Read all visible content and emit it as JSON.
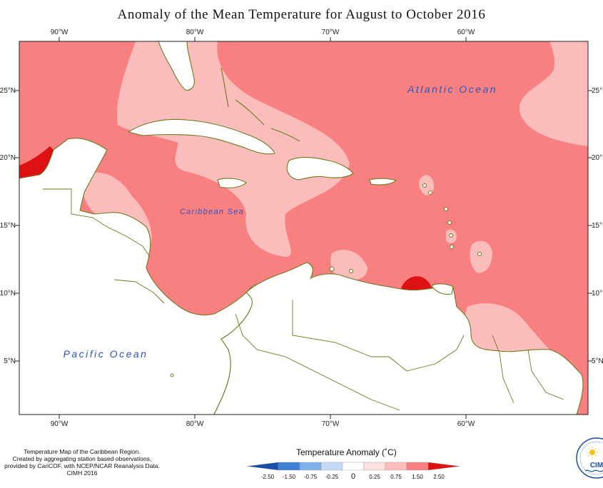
{
  "title": "Anomaly of the Mean Temperature for August to October 2016",
  "map": {
    "longitude_ticks_top": [
      "90°W",
      "80°W",
      "70°W",
      "60°W"
    ],
    "longitude_ticks_bottom": [
      "90°W",
      "80°W",
      "70°W",
      "60°W"
    ],
    "latitude_ticks_left": [
      "25°N",
      "20°N",
      "15°N",
      "10°N",
      "5°N"
    ],
    "latitude_ticks_right": [
      "25°N",
      "20°N",
      "15°N",
      "10°N",
      "5°N"
    ],
    "labels": {
      "atlantic": "Atlantic Ocean",
      "caribbean": "Caribbean Sea",
      "pacific": "Pacific Ocean"
    },
    "colors": {
      "anomaly_0_75_to_1_50": "#f98080",
      "anomaly_0_25_to_0_75": "#fbbcbc",
      "anomaly_1_50_to_2_50": "#dd1111",
      "land": "#ffffff",
      "coastline": "#6b7a1e"
    }
  },
  "credits": [
    "Temperature Map of the Caribbean Region.",
    "Created by aggregating station based observations,",
    "provided by CariCOF, with NCEP/NCAR Reanalysis Data.",
    "CIMH 2016"
  ],
  "legend": {
    "title": "Temperature Anomaly (˚C)",
    "tick_labels": [
      "-2.50",
      "-1.50",
      "-0.75",
      "-0.25",
      "0",
      "0.25",
      "0.75",
      "1.50",
      "2.50"
    ],
    "colors": [
      "#1a4fa8",
      "#3f7fd6",
      "#7fb0ea",
      "#c6d9f4",
      "#ffffff",
      "#fde0e0",
      "#fbbcbc",
      "#f98080",
      "#dd1111"
    ]
  },
  "logo": {
    "text": "CIM"
  }
}
